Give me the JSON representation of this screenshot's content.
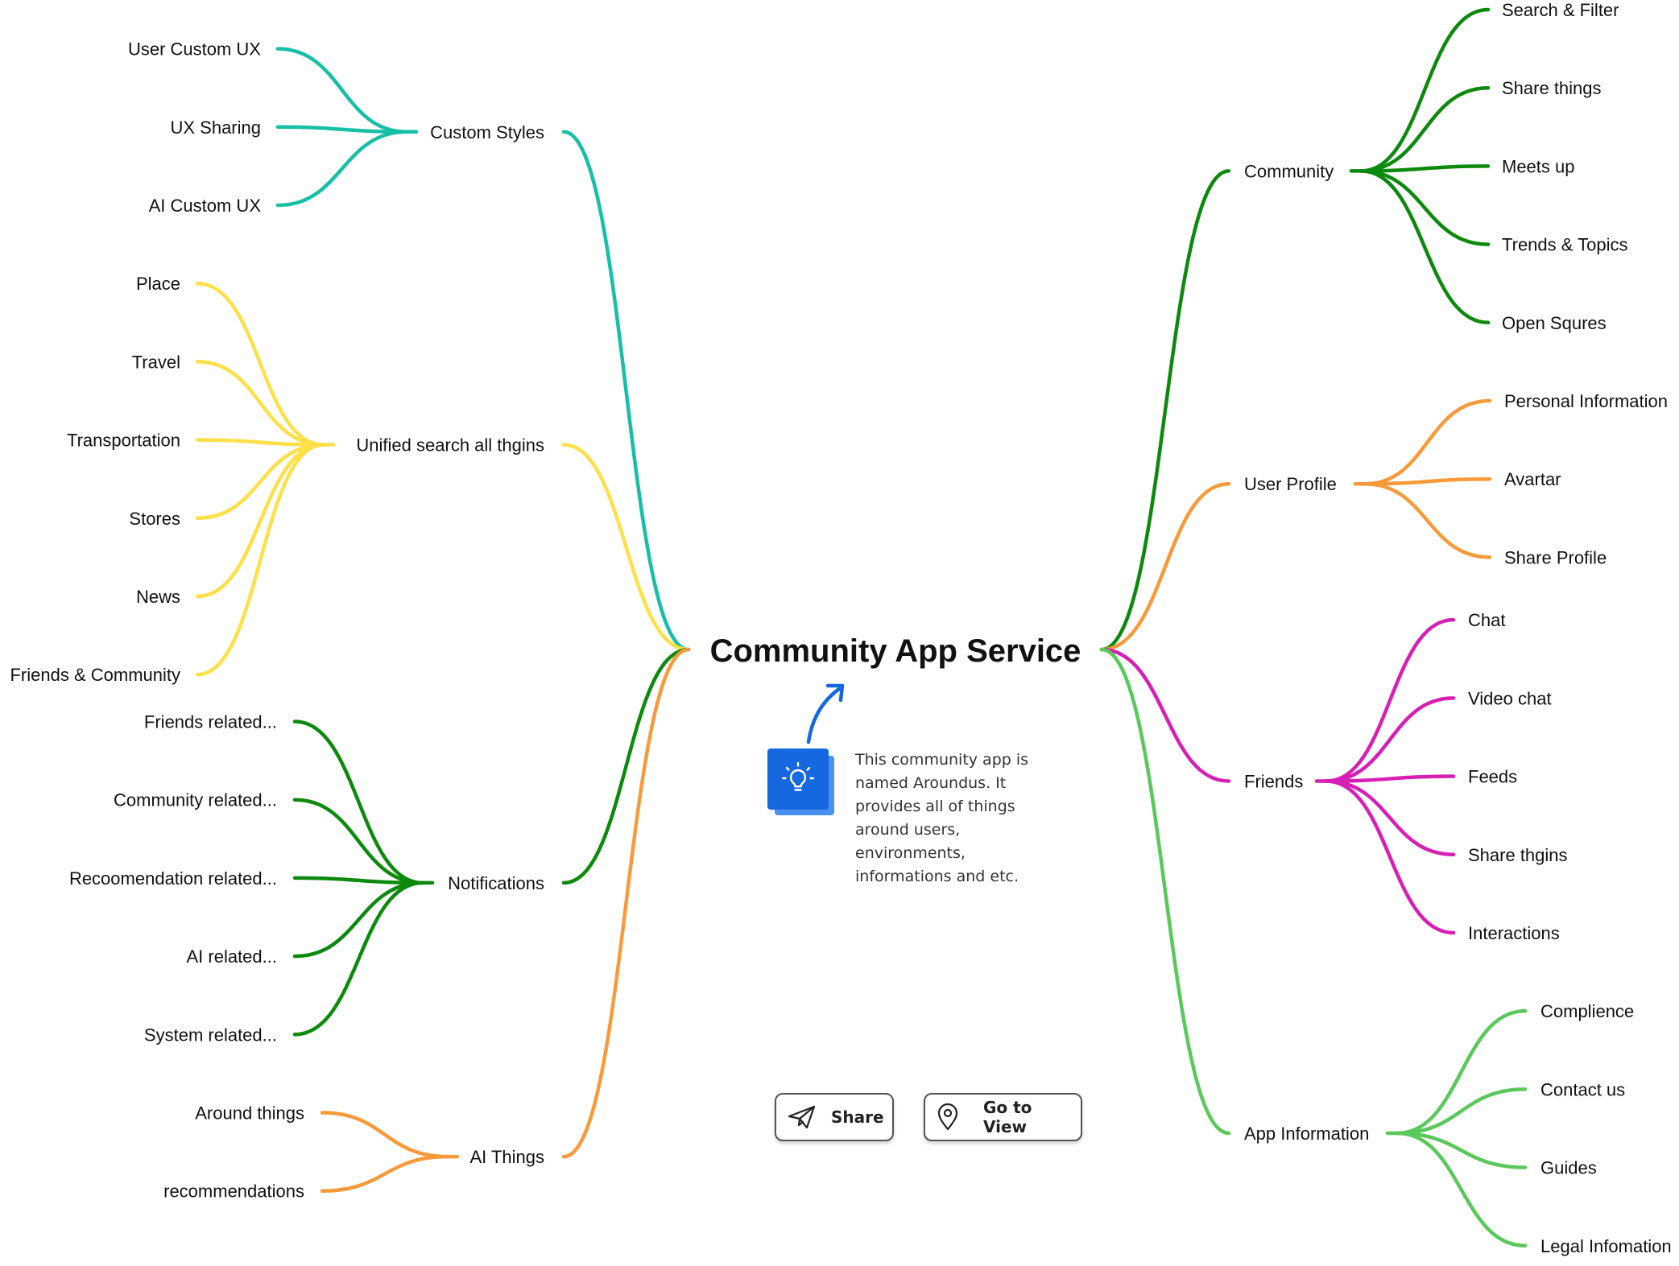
{
  "root": {
    "title": "Community App Service"
  },
  "colors": {
    "teal": "#16bfa6",
    "yellow": "#fde047",
    "green": "#0d8a0d",
    "orange": "#f89a3a",
    "magenta": "#d81fb5",
    "light_green": "#5ac85a",
    "accent_blue": "#1668e0"
  },
  "branches": [
    {
      "label": "Custom Styles",
      "side": "left",
      "color": "#16bfa6",
      "children": [
        "User Custom UX",
        "UX Sharing",
        "AI Custom UX"
      ]
    },
    {
      "label": "Unified search all thgins",
      "side": "left",
      "color": "#fde047",
      "children": [
        "Place",
        "Travel",
        "Transportation",
        "Stores",
        "News",
        "Friends & Community"
      ]
    },
    {
      "label": "Notifications",
      "side": "left",
      "color": "#0d8a0d",
      "children": [
        "Friends related...",
        "Community related...",
        "Recoomendation related...",
        "AI related...",
        "System related..."
      ]
    },
    {
      "label": "AI Things",
      "side": "left",
      "color": "#f89a3a",
      "children": [
        "Around things",
        "recommendations"
      ]
    },
    {
      "label": "Community",
      "side": "right",
      "color": "#0d8a0d",
      "children": [
        "Search & Filter",
        "Share things",
        "Meets up",
        "Trends & Topics",
        "Open Squres"
      ]
    },
    {
      "label": "User Profile",
      "side": "right",
      "color": "#f89a3a",
      "children": [
        "Personal Information",
        "Avartar",
        "Share Profile"
      ]
    },
    {
      "label": "Friends",
      "side": "right",
      "color": "#d81fb5",
      "children": [
        "Chat",
        "Video chat",
        "Feeds",
        "Share thgins",
        "Interactions"
      ]
    },
    {
      "label": "App Information",
      "side": "right",
      "color": "#5ac85a",
      "children": [
        "Complience",
        "Contact us",
        "Guides",
        "Legal Infomation"
      ]
    }
  ],
  "note": {
    "icon": "lightbulb-icon",
    "text": "This community app is named Aroundus. It provides all of things around users, environments, informations and etc."
  },
  "actions": {
    "share_label": "Share",
    "share_icon": "paper-plane-icon",
    "view_label": "Go to View",
    "view_icon": "map-pin-icon"
  }
}
